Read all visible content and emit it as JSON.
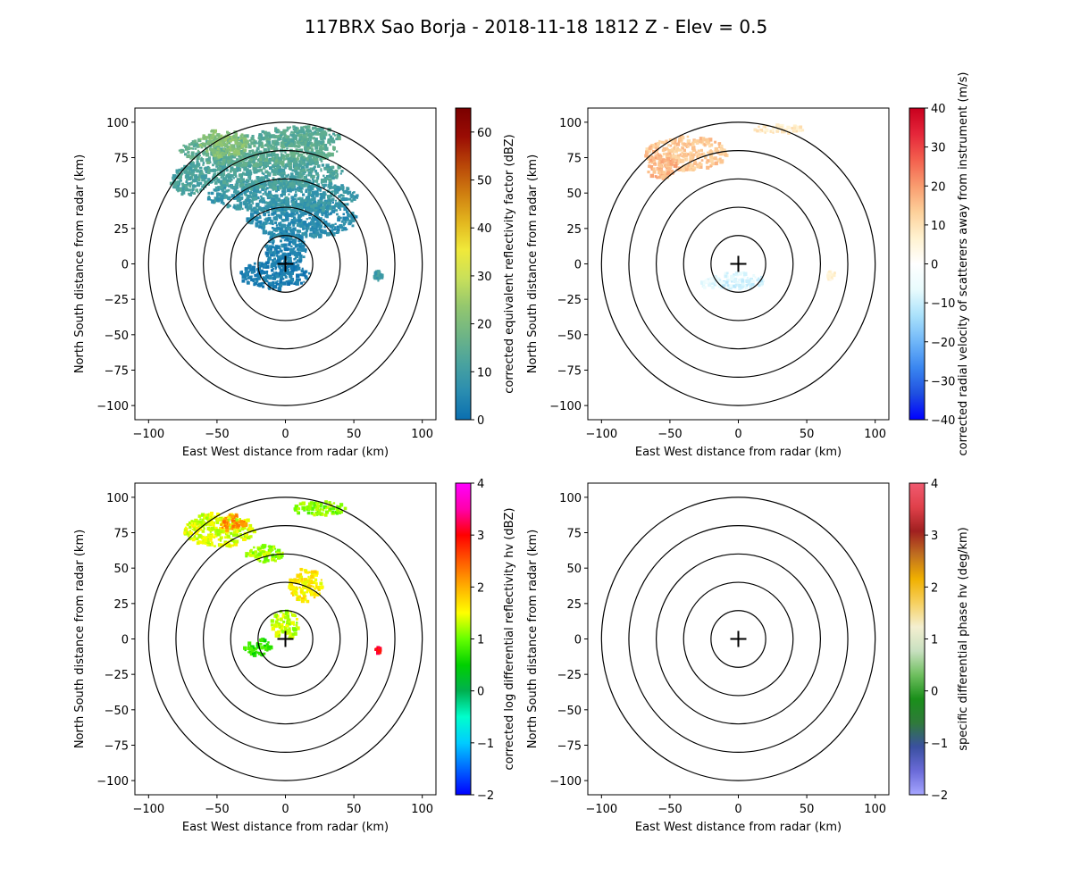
{
  "figure": {
    "title": "117BRX Sao Borja - 2018-11-18 1812 Z -  Elev = 0.5"
  },
  "chart_data": [
    {
      "type": "heatmap",
      "field": "reflectivity",
      "xlabel": "East West distance from radar (km)",
      "ylabel": "North South distance from radar (km)",
      "xlim": [
        -110,
        110
      ],
      "ylim": [
        -110,
        110
      ],
      "xticks": [
        "−100",
        "−50",
        "0",
        "50",
        "100"
      ],
      "yticks": [
        "100",
        "75",
        "50",
        "25",
        "0",
        "−25",
        "−50",
        "−75",
        "−100"
      ],
      "range_rings_km": [
        20,
        40,
        60,
        80,
        100
      ],
      "radar_marker": [
        0,
        0
      ],
      "colorbar": {
        "label": "corrected equivalent reflectivity factor (dBZ)",
        "range": [
          0,
          65
        ],
        "ticks": [
          "0",
          "10",
          "20",
          "30",
          "40",
          "50",
          "60"
        ],
        "colors": [
          "#0b6fb0",
          "#2a8db0",
          "#4aa39e",
          "#6fb585",
          "#94c76e",
          "#c9e05a",
          "#f0e93a",
          "#e2b51e",
          "#cf7d10",
          "#b84508",
          "#9a0c04",
          "#7a0000"
        ]
      },
      "regions": [
        {
          "x": 0,
          "y": 10,
          "rx": 15,
          "ry": 13,
          "value": 4
        },
        {
          "x": -8,
          "y": -8,
          "rx": 26,
          "ry": 10,
          "value": 3
        },
        {
          "x": 12,
          "y": 32,
          "rx": 40,
          "ry": 14,
          "value": 6
        },
        {
          "x": -2,
          "y": 48,
          "rx": 55,
          "ry": 12,
          "value": 9
        },
        {
          "x": -18,
          "y": 65,
          "rx": 60,
          "ry": 12,
          "value": 12
        },
        {
          "x": -20,
          "y": 80,
          "rx": 58,
          "ry": 11,
          "value": 15
        },
        {
          "x": -45,
          "y": 85,
          "rx": 18,
          "ry": 10,
          "value": 22
        },
        {
          "x": 10,
          "y": 90,
          "rx": 30,
          "ry": 7,
          "value": 14
        },
        {
          "x": -70,
          "y": 58,
          "rx": 14,
          "ry": 10,
          "value": 12
        },
        {
          "x": 68,
          "y": -8,
          "rx": 3,
          "ry": 4,
          "value": 10
        }
      ]
    },
    {
      "type": "heatmap",
      "field": "velocity",
      "xlabel": "East West distance from radar (km)",
      "ylabel": "North South distance from radar (km)",
      "xlim": [
        -110,
        110
      ],
      "ylim": [
        -110,
        110
      ],
      "xticks": [
        "−100",
        "−50",
        "0",
        "50",
        "100"
      ],
      "yticks": [
        "100",
        "75",
        "50",
        "25",
        "0",
        "−25",
        "−50",
        "−75",
        "−100"
      ],
      "range_rings_km": [
        20,
        40,
        60,
        80,
        100
      ],
      "radar_marker": [
        0,
        0
      ],
      "colorbar": {
        "label": "corrected radial velocity of scatterers away from instrument (m/s)",
        "range": [
          -40,
          40
        ],
        "ticks": [
          "−40",
          "−30",
          "−20",
          "−10",
          "0",
          "10",
          "20",
          "30",
          "40"
        ],
        "colors": [
          "#0000ff",
          "#1f4fe0",
          "#3a86f0",
          "#6fb6f8",
          "#a9e1fb",
          "#e8fbfd",
          "#ffffff",
          "#fff2d0",
          "#fdd09a",
          "#f99c6f",
          "#f3604e",
          "#e5263a",
          "#c8001e"
        ]
      },
      "regions": [
        {
          "x": -38,
          "y": 78,
          "rx": 30,
          "ry": 12,
          "value": 14
        },
        {
          "x": -55,
          "y": 68,
          "rx": 12,
          "ry": 8,
          "value": 17
        },
        {
          "x": 30,
          "y": 95,
          "rx": 20,
          "ry": 3,
          "value": 8
        },
        {
          "x": 0,
          "y": -12,
          "rx": 20,
          "ry": 6,
          "value": -9
        },
        {
          "x": -20,
          "y": -14,
          "rx": 8,
          "ry": 4,
          "value": -6
        },
        {
          "x": 68,
          "y": -8,
          "rx": 3,
          "ry": 3,
          "value": 6
        }
      ]
    },
    {
      "type": "heatmap",
      "field": "differential_reflectivity",
      "xlabel": "East West distance from radar (km)",
      "ylabel": "North South distance from radar (km)",
      "xlim": [
        -110,
        110
      ],
      "ylim": [
        -110,
        110
      ],
      "xticks": [
        "−100",
        "−50",
        "0",
        "50",
        "100"
      ],
      "yticks": [
        "100",
        "75",
        "50",
        "25",
        "0",
        "−25",
        "−50",
        "−75",
        "−100"
      ],
      "range_rings_km": [
        20,
        40,
        60,
        80,
        100
      ],
      "radar_marker": [
        0,
        0
      ],
      "colorbar": {
        "label": "corrected log differential reflectivity hv (dBZ)",
        "range": [
          -2,
          4
        ],
        "ticks": [
          "−2",
          "−1",
          "0",
          "1",
          "2",
          "3",
          "4"
        ],
        "colors": [
          "#0000ff",
          "#0066ff",
          "#00ccff",
          "#00ffcc",
          "#00b050",
          "#00d000",
          "#66ff00",
          "#ffff00",
          "#ffb000",
          "#ff5a00",
          "#ff0000",
          "#ff00aa",
          "#ff00ff"
        ]
      },
      "regions": [
        {
          "x": -48,
          "y": 77,
          "rx": 26,
          "ry": 12,
          "value": 1.4
        },
        {
          "x": -38,
          "y": 82,
          "rx": 10,
          "ry": 6,
          "value": 2.2
        },
        {
          "x": 25,
          "y": 92,
          "rx": 20,
          "ry": 5,
          "value": 1.1
        },
        {
          "x": -15,
          "y": 60,
          "rx": 14,
          "ry": 6,
          "value": 1.2
        },
        {
          "x": 15,
          "y": 38,
          "rx": 12,
          "ry": 12,
          "value": 1.6
        },
        {
          "x": 0,
          "y": 10,
          "rx": 10,
          "ry": 10,
          "value": 1.3
        },
        {
          "x": -20,
          "y": -6,
          "rx": 10,
          "ry": 6,
          "value": 0.7
        },
        {
          "x": 68,
          "y": -8,
          "rx": 2,
          "ry": 2,
          "value": 3.0
        }
      ]
    },
    {
      "type": "heatmap",
      "field": "specific_differential_phase",
      "xlabel": "East West distance from radar (km)",
      "ylabel": "North South distance from radar (km)",
      "xlim": [
        -110,
        110
      ],
      "ylim": [
        -110,
        110
      ],
      "xticks": [
        "−100",
        "−50",
        "0",
        "50",
        "100"
      ],
      "yticks": [
        "100",
        "75",
        "50",
        "25",
        "0",
        "−25",
        "−50",
        "−75",
        "−100"
      ],
      "range_rings_km": [
        20,
        40,
        60,
        80,
        100
      ],
      "radar_marker": [
        0,
        0
      ],
      "colorbar": {
        "label": "specific differential phase hv (deg/km)",
        "range": [
          -2,
          4
        ],
        "ticks": [
          "−2",
          "−1",
          "0",
          "1",
          "2",
          "3",
          "4"
        ],
        "colors": [
          "#a6a6ff",
          "#6a6ad8",
          "#3a50a0",
          "#2f7a3a",
          "#1a8f1a",
          "#6fbf5f",
          "#c8e0c0",
          "#f4efd0",
          "#f6d060",
          "#f0b000",
          "#c07020",
          "#a02020",
          "#e0404a",
          "#f05a70"
        ]
      },
      "regions": []
    }
  ]
}
